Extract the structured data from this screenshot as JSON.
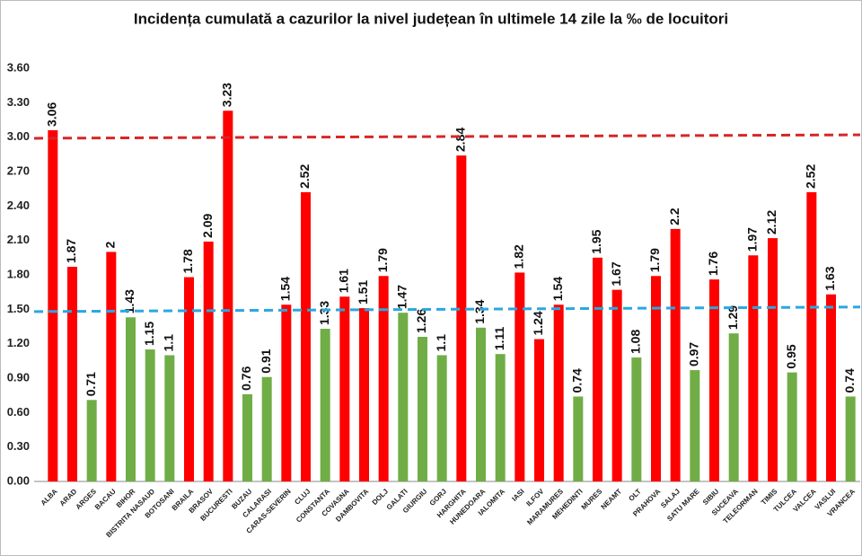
{
  "chart_data": {
    "type": "bar",
    "title": "Incidența cumulată a cazurilor la nivel județean în ultimele 14 zile la ‰ de locuitori",
    "categories": [
      "ALBA",
      "ARAD",
      "ARGES",
      "BACAU",
      "BIHOR",
      "BISTRITA NASAUD",
      "BOTOSANI",
      "BRAILA",
      "BRASOV",
      "BUCURESTI",
      "BUZAU",
      "CALARASI",
      "CARAS-SEVERIN",
      "CLUJ",
      "CONSTANTA",
      "COVASNA",
      "DAMBOVITA",
      "DOLJ",
      "GALATI",
      "GIURGIU",
      "GORJ",
      "HARGHITA",
      "HUNEDOARA",
      "IALOMITA",
      "IASI",
      "ILFOV",
      "MARAMURES",
      "MEHEDINTI",
      "MURES",
      "NEAMT",
      "OLT",
      "PRAHOVA",
      "SALAJ",
      "SATU MARE",
      "SIBIU",
      "SUCEAVA",
      "TELEORMAN",
      "TIMIS",
      "TULCEA",
      "VALCEA",
      "VASLUI",
      "VRANCEA"
    ],
    "values": [
      3.06,
      1.87,
      0.71,
      2,
      1.43,
      1.15,
      1.1,
      1.78,
      2.09,
      3.23,
      0.76,
      0.91,
      1.54,
      2.52,
      1.33,
      1.61,
      1.51,
      1.79,
      1.47,
      1.26,
      1.1,
      2.84,
      1.34,
      1.11,
      1.82,
      1.24,
      1.54,
      0.74,
      1.95,
      1.67,
      1.08,
      1.79,
      2.2,
      0.97,
      1.76,
      1.29,
      1.97,
      2.12,
      0.95,
      2.52,
      1.63,
      0.74
    ],
    "colors": [
      "#ff0000",
      "#ff0000",
      "#70ad47",
      "#ff0000",
      "#70ad47",
      "#70ad47",
      "#70ad47",
      "#ff0000",
      "#ff0000",
      "#ff0000",
      "#70ad47",
      "#70ad47",
      "#ff0000",
      "#ff0000",
      "#70ad47",
      "#ff0000",
      "#ff0000",
      "#ff0000",
      "#70ad47",
      "#70ad47",
      "#70ad47",
      "#ff0000",
      "#70ad47",
      "#70ad47",
      "#ff0000",
      "#ff0000",
      "#ff0000",
      "#70ad47",
      "#ff0000",
      "#ff0000",
      "#70ad47",
      "#ff0000",
      "#ff0000",
      "#70ad47",
      "#ff0000",
      "#70ad47",
      "#ff0000",
      "#ff0000",
      "#70ad47",
      "#ff0000",
      "#ff0000",
      "#70ad47"
    ],
    "ylim": [
      0,
      3.6
    ],
    "yticks": [
      {
        "value": 0,
        "label": "0.00"
      },
      {
        "value": 0.3,
        "label": "0.30"
      },
      {
        "value": 0.6,
        "label": "0.60"
      },
      {
        "value": 0.9,
        "label": "0.90"
      },
      {
        "value": 1.2,
        "label": "1.20"
      },
      {
        "value": 1.5,
        "label": "1.50"
      },
      {
        "value": 1.8,
        "label": "1.80"
      },
      {
        "value": 2.1,
        "label": "2.10"
      },
      {
        "value": 2.4,
        "label": "2.40"
      },
      {
        "value": 2.7,
        "label": "2.70"
      },
      {
        "value": 3,
        "label": "3.00"
      },
      {
        "value": 3.3,
        "label": "3.30"
      },
      {
        "value": 3.6,
        "label": "3.60"
      }
    ],
    "reference_lines": [
      {
        "color": "#d62728",
        "values": [
          2.99,
          3.02
        ]
      },
      {
        "color": "#29a8e0",
        "values": [
          1.48,
          1.52
        ]
      }
    ]
  }
}
